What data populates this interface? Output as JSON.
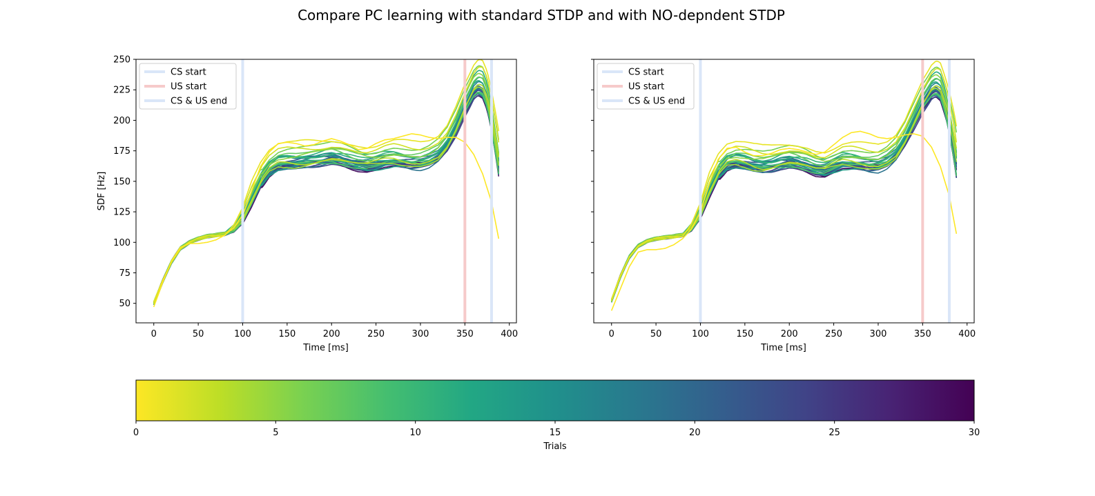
{
  "figure": {
    "title": "Compare PC learning with standard STDP and with NO-depndent STDP"
  },
  "chart_data": [
    {
      "type": "line",
      "panel": "left",
      "xlabel": "Time [ms]",
      "ylabel": "SDF [Hz]",
      "xlim": [
        -20,
        408
      ],
      "ylim": [
        34,
        250
      ],
      "xticks": [
        0,
        50,
        100,
        150,
        200,
        250,
        300,
        350,
        400
      ],
      "yticks": [
        50,
        75,
        100,
        125,
        150,
        175,
        200,
        225,
        250
      ],
      "colormap": "viridis_r",
      "n_trials": 30,
      "base_curve": {
        "x": [
          0,
          10,
          20,
          30,
          40,
          50,
          60,
          70,
          80,
          90,
          100,
          110,
          120,
          130,
          140,
          150,
          160,
          170,
          180,
          190,
          200,
          210,
          220,
          230,
          240,
          250,
          260,
          270,
          280,
          290,
          300,
          310,
          320,
          330,
          340,
          350,
          360,
          365,
          370,
          375,
          380,
          385,
          388
        ],
        "y": [
          50,
          68,
          84,
          95,
          100,
          103,
          105,
          106,
          107,
          109,
          116,
          130,
          145,
          155,
          160,
          161,
          161,
          162,
          163,
          164,
          165,
          164,
          162,
          160,
          159,
          160,
          162,
          163,
          162,
          161,
          161,
          163,
          167,
          176,
          189,
          205,
          218,
          221,
          219,
          210,
          193,
          172,
          158
        ]
      },
      "first_trial": {
        "x": [
          0,
          10,
          20,
          30,
          40,
          50,
          60,
          70,
          80,
          90,
          100,
          110,
          120,
          130,
          140,
          150,
          160,
          170,
          180,
          190,
          200,
          210,
          220,
          230,
          240,
          250,
          260,
          270,
          280,
          290,
          300,
          310,
          320,
          330,
          340,
          350,
          360,
          370,
          380,
          388
        ],
        "y": [
          47,
          67,
          85,
          96,
          99,
          99,
          100,
          102,
          106,
          112,
          122,
          142,
          162,
          174,
          181,
          182,
          181,
          179,
          180,
          183,
          185,
          183,
          180,
          176,
          177,
          181,
          184,
          185,
          187,
          189,
          188,
          186,
          185,
          186,
          186,
          182,
          172,
          156,
          133,
          103
        ]
      },
      "final_range": [
        153,
        161
      ]
    },
    {
      "type": "line",
      "panel": "right",
      "xlabel": "Time [ms]",
      "ylabel": "",
      "xlim": [
        -20,
        408
      ],
      "ylim": [
        34,
        250
      ],
      "xticks": [
        0,
        50,
        100,
        150,
        200,
        250,
        300,
        350,
        400
      ],
      "yticks": [
        50,
        75,
        100,
        125,
        150,
        175,
        200,
        225,
        250
      ],
      "colormap": "viridis_r",
      "n_trials": 30,
      "base_curve": {
        "x": [
          0,
          10,
          20,
          30,
          40,
          50,
          60,
          70,
          80,
          90,
          100,
          110,
          120,
          130,
          140,
          150,
          160,
          170,
          180,
          190,
          200,
          210,
          220,
          230,
          240,
          250,
          260,
          270,
          280,
          290,
          300,
          310,
          320,
          330,
          340,
          350,
          360,
          365,
          370,
          375,
          380,
          385,
          388
        ],
        "y": [
          52,
          72,
          88,
          97,
          101,
          103,
          104,
          105,
          106,
          110,
          120,
          137,
          152,
          160,
          162,
          161,
          159,
          158,
          159,
          161,
          162,
          161,
          159,
          156,
          155,
          158,
          161,
          161,
          160,
          159,
          159,
          162,
          168,
          180,
          194,
          208,
          218,
          220,
          217,
          206,
          188,
          167,
          151
        ]
      },
      "first_trial": {
        "x": [
          0,
          10,
          20,
          30,
          40,
          50,
          60,
          70,
          80,
          90,
          100,
          110,
          120,
          130,
          140,
          150,
          160,
          170,
          180,
          190,
          200,
          210,
          220,
          230,
          240,
          250,
          260,
          270,
          280,
          290,
          300,
          310,
          320,
          330,
          340,
          350,
          360,
          370,
          380,
          388
        ],
        "y": [
          44,
          62,
          80,
          92,
          94,
          94,
          95,
          98,
          103,
          111,
          125,
          148,
          168,
          177,
          178,
          174,
          171,
          171,
          173,
          176,
          177,
          176,
          174,
          172,
          174,
          180,
          186,
          190,
          191,
          189,
          186,
          185,
          186,
          188,
          189,
          187,
          178,
          162,
          138,
          107
        ]
      },
      "final_range": [
        150,
        168
      ]
    }
  ],
  "markers": [
    {
      "label": "CS start",
      "x": 100,
      "color": "#dae6f8"
    },
    {
      "label": "US start",
      "x": 350,
      "color": "#f6caca"
    },
    {
      "label": "CS & US end",
      "x": 380,
      "color": "#dae6f8"
    }
  ],
  "colorbar": {
    "label": "Trials",
    "min": 0,
    "max": 30,
    "ticks": [
      0,
      5,
      10,
      15,
      20,
      25,
      30
    ],
    "colormap": "viridis_r"
  }
}
